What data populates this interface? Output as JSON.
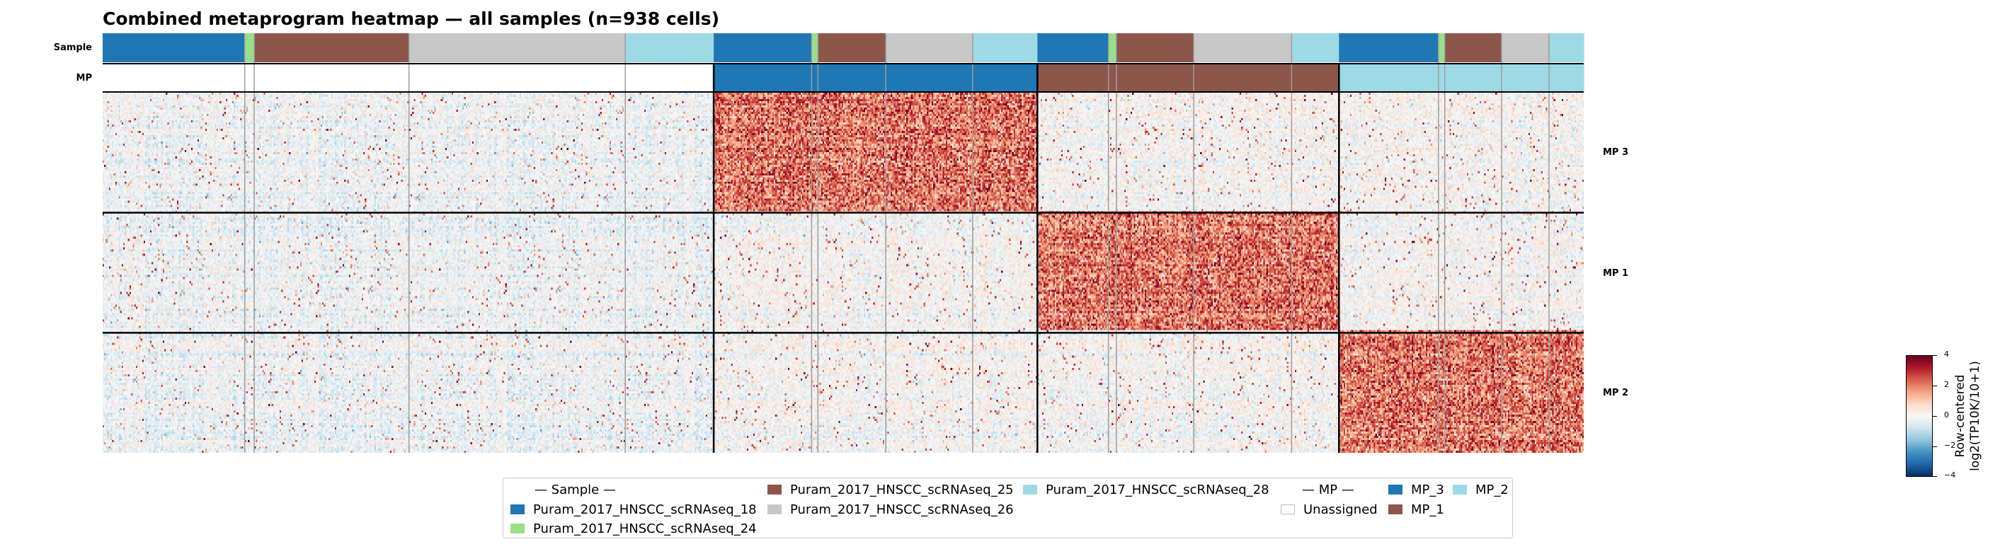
{
  "chart_data": {
    "type": "heatmap",
    "title": "Combined metaprogram heatmap — all samples (n=938 cells)",
    "row_annotation_labels": [
      "Sample",
      "MP"
    ],
    "gene_block_labels": [
      "MP 3",
      "MP 1",
      "MP 2"
    ],
    "column_groups": [
      {
        "mp": "Unassigned",
        "samples": [
          {
            "sample": "Puram_2017_HNSCC_scRNAseq_18",
            "n_cells": 90
          },
          {
            "sample": "Puram_2017_HNSCC_scRNAseq_24",
            "n_cells": 6
          },
          {
            "sample": "Puram_2017_HNSCC_scRNAseq_25",
            "n_cells": 98
          },
          {
            "sample": "Puram_2017_HNSCC_scRNAseq_26",
            "n_cells": 137
          },
          {
            "sample": "Puram_2017_HNSCC_scRNAseq_28",
            "n_cells": 56
          }
        ]
      },
      {
        "mp": "MP_3",
        "samples": [
          {
            "sample": "Puram_2017_HNSCC_scRNAseq_18",
            "n_cells": 62
          },
          {
            "sample": "Puram_2017_HNSCC_scRNAseq_24",
            "n_cells": 4
          },
          {
            "sample": "Puram_2017_HNSCC_scRNAseq_25",
            "n_cells": 43
          },
          {
            "sample": "Puram_2017_HNSCC_scRNAseq_26",
            "n_cells": 55
          },
          {
            "sample": "Puram_2017_HNSCC_scRNAseq_28",
            "n_cells": 41
          }
        ]
      },
      {
        "mp": "MP_1",
        "samples": [
          {
            "sample": "Puram_2017_HNSCC_scRNAseq_18",
            "n_cells": 45
          },
          {
            "sample": "Puram_2017_HNSCC_scRNAseq_24",
            "n_cells": 5
          },
          {
            "sample": "Puram_2017_HNSCC_scRNAseq_25",
            "n_cells": 49
          },
          {
            "sample": "Puram_2017_HNSCC_scRNAseq_26",
            "n_cells": 62
          },
          {
            "sample": "Puram_2017_HNSCC_scRNAseq_28",
            "n_cells": 30
          }
        ]
      },
      {
        "mp": "MP_2",
        "samples": [
          {
            "sample": "Puram_2017_HNSCC_scRNAseq_18",
            "n_cells": 63
          },
          {
            "sample": "Puram_2017_HNSCC_scRNAseq_24",
            "n_cells": 4
          },
          {
            "sample": "Puram_2017_HNSCC_scRNAseq_25",
            "n_cells": 36
          },
          {
            "sample": "Puram_2017_HNSCC_scRNAseq_26",
            "n_cells": 30
          },
          {
            "sample": "Puram_2017_HNSCC_scRNAseq_28",
            "n_cells": 22
          }
        ]
      }
    ],
    "colorbar": {
      "label_lines": [
        "Row-centered",
        "log2(TP10K/10+1)"
      ],
      "range": [
        -4,
        4
      ],
      "ticks": [
        4,
        2,
        0,
        -2,
        -4
      ],
      "tick_labels": [
        "4",
        "2",
        "0",
        "−2",
        "−4"
      ],
      "colormap": "RdBu_r"
    },
    "legend": {
      "sample_header": "— Sample —",
      "samples": [
        {
          "name": "Puram_2017_HNSCC_scRNAseq_18",
          "color": "#1f77b4"
        },
        {
          "name": "Puram_2017_HNSCC_scRNAseq_24",
          "color": "#98df8a"
        },
        {
          "name": "Puram_2017_HNSCC_scRNAseq_25",
          "color": "#8c564b"
        },
        {
          "name": "Puram_2017_HNSCC_scRNAseq_26",
          "color": "#c7c7c7"
        },
        {
          "name": "Puram_2017_HNSCC_scRNAseq_28",
          "color": "#9edae5"
        }
      ],
      "mp_header": "— MP —",
      "mps": [
        {
          "name": "Unassigned",
          "color": "#ffffff"
        },
        {
          "name": "MP_3",
          "color": "#1f77b4"
        },
        {
          "name": "MP_1",
          "color": "#8c564b"
        },
        {
          "name": "MP_2",
          "color": "#9edae5"
        }
      ]
    }
  }
}
